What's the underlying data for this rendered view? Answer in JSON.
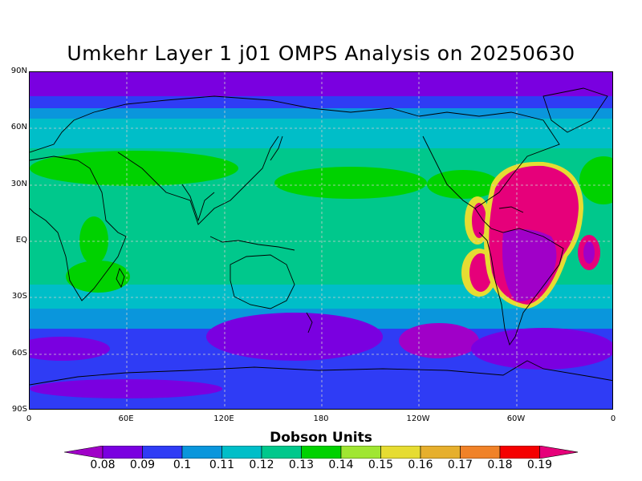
{
  "title": "Umkehr Layer 1 j01 OMPS Analysis on 20250630",
  "units": "Dobson Units",
  "y_ticks": [
    "90N",
    "60N",
    "30N",
    "EQ",
    "30S",
    "60S",
    "90S"
  ],
  "x_ticks": [
    "0",
    "60E",
    "120E",
    "180",
    "120W",
    "60W",
    "0"
  ],
  "colorbar": {
    "labels": [
      "0.08",
      "0.09",
      "0.1",
      "0.11",
      "0.12",
      "0.13",
      "0.14",
      "0.15",
      "0.16",
      "0.17",
      "0.18",
      "0.19"
    ],
    "colors": [
      "#a000c8",
      "#7a00e0",
      "#2f3cf5",
      "#0a96dc",
      "#00bec8",
      "#00c88c",
      "#00d200",
      "#a0e632",
      "#e6dc32",
      "#e6af2d",
      "#f08228",
      "#f50000",
      "#e6007a"
    ]
  }
}
